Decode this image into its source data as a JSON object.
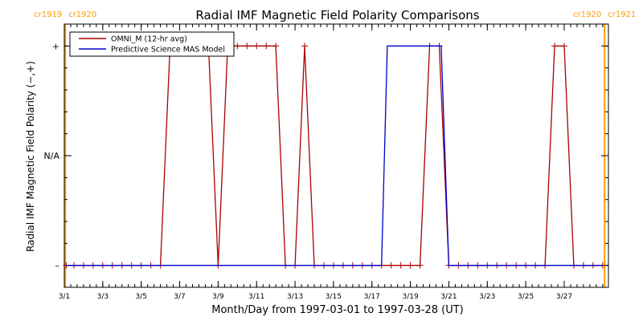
{
  "chart_data": {
    "type": "line",
    "title": "Radial IMF Magnetic Field Polarity Comparisons",
    "xlabel": "Month/Day from 1997-03-01 to 1997-03-28 (UT)",
    "ylabel": "Radial IMF Magnetic Field Polarity (−,+)",
    "xlim": [
      0.0,
      28.3
    ],
    "ylim": [
      -1.2,
      1.2
    ],
    "grid": false,
    "legend_position": "top-left",
    "x_ticks": [
      {
        "x": 0,
        "label": "3/1"
      },
      {
        "x": 2,
        "label": "3/3"
      },
      {
        "x": 4,
        "label": "3/5"
      },
      {
        "x": 6,
        "label": "3/7"
      },
      {
        "x": 8,
        "label": "3/9"
      },
      {
        "x": 10,
        "label": "3/11"
      },
      {
        "x": 12,
        "label": "3/13"
      },
      {
        "x": 14,
        "label": "3/15"
      },
      {
        "x": 16,
        "label": "3/17"
      },
      {
        "x": 18,
        "label": "3/19"
      },
      {
        "x": 20,
        "label": "3/21"
      },
      {
        "x": 22,
        "label": "3/23"
      },
      {
        "x": 24,
        "label": "3/25"
      },
      {
        "x": 26,
        "label": "3/27"
      }
    ],
    "y_ticks": [
      {
        "y": 1,
        "label": "+"
      },
      {
        "y": 0,
        "label": "N/A"
      },
      {
        "y": -1,
        "label": "–"
      }
    ],
    "carrington_markers": [
      {
        "x": 0.05,
        "left_label": "cr1919",
        "right_label": "cr1920"
      },
      {
        "x": 28.1,
        "left_label": "cr1920",
        "right_label": "cr1921"
      }
    ],
    "series": [
      {
        "name": "OMNI_M (12-hr avg)",
        "color": "#aa0000",
        "marker": "plus",
        "x": [
          0.1,
          0.5,
          1.0,
          1.5,
          2.0,
          2.5,
          3.0,
          3.5,
          4.0,
          4.5,
          5.0,
          5.5,
          6.0,
          6.5,
          7.0,
          7.5,
          8.0,
          8.5,
          9.0,
          9.5,
          10.0,
          10.5,
          11.0,
          11.5,
          12.0,
          12.5,
          13.0,
          13.5,
          14.0,
          14.5,
          15.0,
          15.5,
          16.0,
          16.5,
          17.0,
          17.5,
          18.0,
          18.5,
          19.0,
          19.5,
          20.0,
          20.5,
          21.0,
          21.5,
          22.0,
          22.5,
          23.0,
          23.5,
          24.0,
          24.5,
          25.0,
          25.5,
          26.0,
          26.5,
          27.0,
          27.5,
          28.0
        ],
        "y": [
          -1,
          -1,
          -1,
          -1,
          -1,
          -1,
          -1,
          -1,
          -1,
          -1,
          -1,
          1,
          1,
          1,
          1,
          1,
          -1,
          1,
          1,
          1,
          1,
          1,
          1,
          -1,
          -1,
          1,
          -1,
          -1,
          -1,
          -1,
          -1,
          -1,
          -1,
          -1,
          -1,
          -1,
          -1,
          -1,
          1,
          1,
          -1,
          -1,
          -1,
          -1,
          -1,
          -1,
          -1,
          -1,
          -1,
          -1,
          -1,
          1,
          1,
          -1,
          -1,
          -1,
          -1
        ]
      },
      {
        "name": "Predictive Science MAS Model",
        "color": "#0000cc",
        "marker": "none",
        "x": [
          0.1,
          16.5,
          16.8,
          19.6,
          20.0,
          28.0
        ],
        "y": [
          -1,
          -1,
          1,
          1,
          -1,
          -1
        ]
      }
    ]
  }
}
